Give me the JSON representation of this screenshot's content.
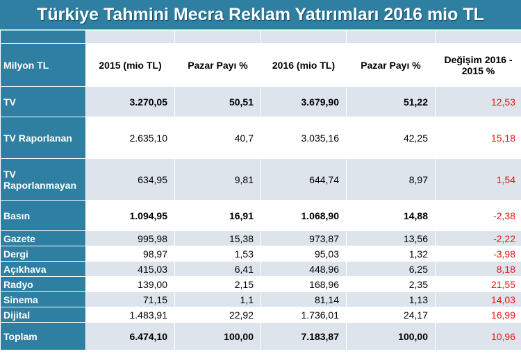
{
  "title": "Türkiye Tahmini Mecra Reklam Yatırımları 2016 mio TL",
  "table": {
    "headers": {
      "label": "Milyon  TL",
      "y2015": "2015 (mio TL)",
      "share2015": "Pazar Payı %",
      "y2016": "2016 (mio TL)",
      "share2016": "Pazar Payı %",
      "change": "Değişim 2016 - 2015 %"
    },
    "rows": [
      {
        "label": "TV",
        "y2015": "3.270,05",
        "share2015": "50,51",
        "y2016": "3.679,90",
        "share2016": "51,22",
        "change": "12,53"
      },
      {
        "label": "TV Raporlanan",
        "y2015": "2.635,10",
        "share2015": "40,7",
        "y2016": "3.035,16",
        "share2016": "42,25",
        "change": "15,18"
      },
      {
        "label": "TV Raporlanmayan",
        "y2015": "634,95",
        "share2015": "9,81",
        "y2016": "644,74",
        "share2016": "8,97",
        "change": "1,54"
      },
      {
        "label": "Basın",
        "y2015": "1.094,95",
        "share2015": "16,91",
        "y2016": "1.068,90",
        "share2016": "14,88",
        "change": "-2,38"
      },
      {
        "label": "Gazete",
        "y2015": "995,98",
        "share2015": "15,38",
        "y2016": "973,87",
        "share2016": "13,56",
        "change": "-2,22"
      },
      {
        "label": "Dergi",
        "y2015": "98,97",
        "share2015": "1,53",
        "y2016": "95,03",
        "share2016": "1,32",
        "change": "-3,98"
      },
      {
        "label": "Açıkhava",
        "y2015": "415,03",
        "share2015": "6,41",
        "y2016": "448,96",
        "share2016": "6,25",
        "change": "8,18"
      },
      {
        "label": "Radyo",
        "y2015": "139,00",
        "share2015": "2,15",
        "y2016": "168,96",
        "share2016": "2,35",
        "change": "21,55"
      },
      {
        "label": "Sinema",
        "y2015": "71,15",
        "share2015": "1,1",
        "y2016": "81,14",
        "share2016": "1,13",
        "change": "14,03"
      },
      {
        "label": "Dijital",
        "y2015": "1.483,91",
        "share2015": "22,92",
        "y2016": "1.736,01",
        "share2016": "24,17",
        "change": "16,99"
      },
      {
        "label": "Toplam",
        "y2015": "6.474,10",
        "share2015": "100,00",
        "y2016": "7.183,87",
        "share2016": "100,00",
        "change": "10,96"
      }
    ]
  },
  "colors": {
    "header_blue": "#2e7fa1",
    "row_light": "#dde4ec",
    "change_red": "#ee1111"
  }
}
